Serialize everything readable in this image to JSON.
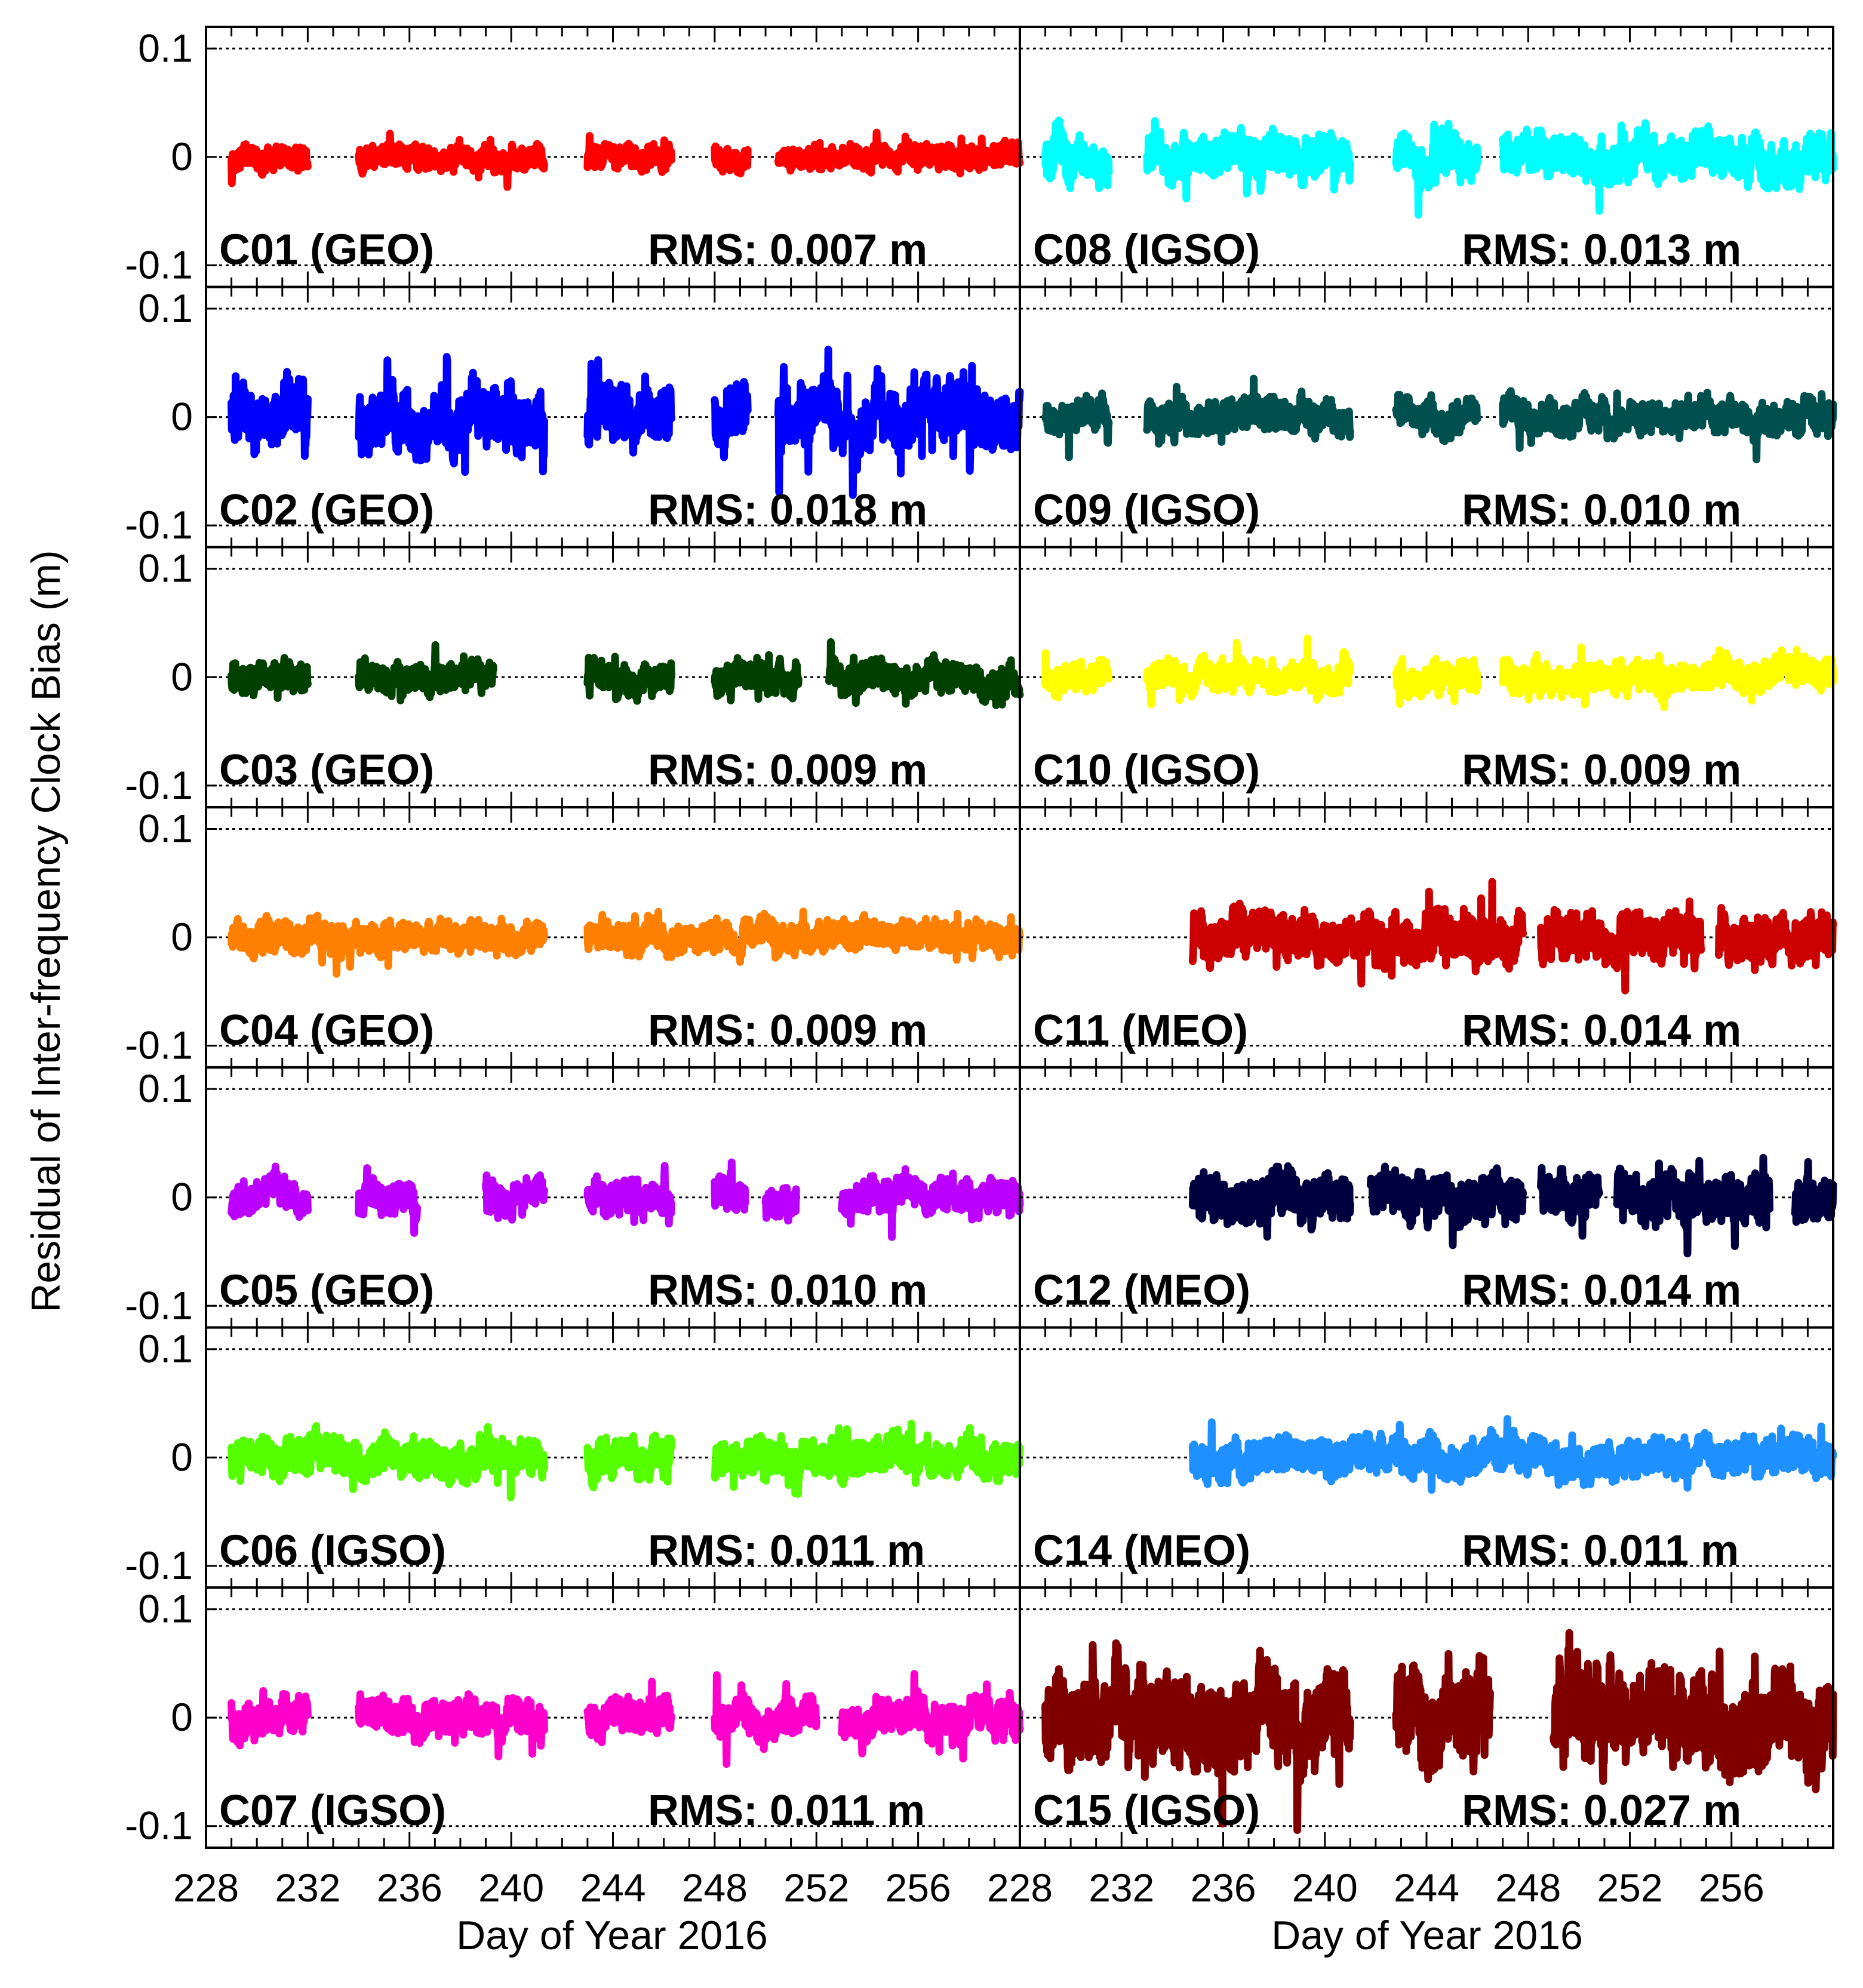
{
  "chart_data": {
    "type": "line",
    "ylabel": "Residual of Inter-frequency Clock Bias (m)",
    "xlabel_left": "Day of Year 2016",
    "xlabel_right": "Day of Year 2016",
    "xlim": [
      228,
      260
    ],
    "ylim": [
      -0.12,
      0.12
    ],
    "xticks": [
      228,
      232,
      236,
      240,
      244,
      248,
      252,
      256
    ],
    "xtick_labels_left": [
      "228",
      "232",
      "236",
      "240",
      "244",
      "248",
      "252",
      "256"
    ],
    "xtick_labels_right": [
      "228",
      "232",
      "236",
      "240",
      "244",
      "248",
      "252",
      "256"
    ],
    "yticks": [
      0.1,
      0,
      -0.1
    ],
    "ytick_labels": [
      "0.1",
      "0",
      "-0.1"
    ],
    "grid": "dotted horizontal lines at 0.1, 0 and -0.1",
    "panels": [
      {
        "name": "C01 (GEO)",
        "rms": "RMS: 0.007 m",
        "color": "#ff0000",
        "amp": 0.007,
        "segments": [
          [
            229,
            232
          ],
          [
            234,
            241.3
          ],
          [
            243,
            246.3
          ],
          [
            248,
            249.3
          ],
          [
            250.5,
            260
          ]
        ]
      },
      {
        "name": "C08 (IGSO)",
        "rms": "RMS: 0.013 m",
        "color": "#00ffff",
        "amp": 0.013,
        "segments": [
          [
            229,
            231.5
          ],
          [
            233,
            241
          ],
          [
            242.8,
            246
          ],
          [
            247,
            260
          ]
        ]
      },
      {
        "name": "C02 (GEO)",
        "rms": "RMS: 0.018 m",
        "color": "#0000ff",
        "amp": 0.018,
        "segments": [
          [
            229,
            232
          ],
          [
            234,
            241.3
          ],
          [
            243,
            246.3
          ],
          [
            248,
            249.3
          ],
          [
            250.5,
            260
          ]
        ]
      },
      {
        "name": "C09 (IGSO)",
        "rms": "RMS: 0.010 m",
        "color": "#005050",
        "amp": 0.01,
        "segments": [
          [
            229,
            231.5
          ],
          [
            233,
            241
          ],
          [
            242.8,
            246
          ],
          [
            247,
            260
          ]
        ]
      },
      {
        "name": "C03 (GEO)",
        "rms": "RMS: 0.009 m",
        "color": "#004000",
        "amp": 0.009,
        "segments": [
          [
            229,
            232
          ],
          [
            234,
            239.3
          ],
          [
            243,
            246.3
          ],
          [
            248,
            251.3
          ],
          [
            252.5,
            260
          ]
        ]
      },
      {
        "name": "C10 (IGSO)",
        "rms": "RMS: 0.009 m",
        "color": "#ffff00",
        "amp": 0.009,
        "segments": [
          [
            229,
            231.5
          ],
          [
            233,
            241
          ],
          [
            242.8,
            246
          ],
          [
            247,
            260
          ]
        ]
      },
      {
        "name": "C04 (GEO)",
        "rms": "RMS: 0.009 m",
        "color": "#ff8000",
        "amp": 0.009,
        "segments": [
          [
            229,
            241.3
          ],
          [
            243,
            260
          ]
        ]
      },
      {
        "name": "C11 (MEO)",
        "rms": "RMS: 0.014 m",
        "color": "#cc0000",
        "amp": 0.014,
        "segments": [
          [
            234.8,
            247.8
          ],
          [
            248.5,
            254.8
          ],
          [
            255.5,
            260
          ]
        ]
      },
      {
        "name": "C05 (GEO)",
        "rms": "RMS: 0.010 m",
        "color": "#bb00ff",
        "amp": 0.01,
        "segments": [
          [
            229,
            232
          ],
          [
            234,
            236.3
          ],
          [
            239,
            241.3
          ],
          [
            243,
            246.3
          ],
          [
            248,
            249.2
          ],
          [
            250,
            251.2
          ],
          [
            253,
            260
          ]
        ]
      },
      {
        "name": "C12 (MEO)",
        "rms": "RMS: 0.014 m",
        "color": "#000040",
        "amp": 0.014,
        "segments": [
          [
            234.8,
            241
          ],
          [
            241.8,
            247.8
          ],
          [
            248.5,
            250.8
          ],
          [
            251.5,
            257.5
          ],
          [
            258.5,
            260
          ]
        ]
      },
      {
        "name": "C06 (IGSO)",
        "rms": "RMS: 0.011 m",
        "color": "#55ff00",
        "amp": 0.011,
        "segments": [
          [
            229,
            241.3
          ],
          [
            243,
            246.3
          ],
          [
            248,
            260
          ]
        ]
      },
      {
        "name": "C14 (MEO)",
        "rms": "RMS: 0.011 m",
        "color": "#1e90ff",
        "amp": 0.011,
        "segments": [
          [
            234.8,
            260
          ]
        ]
      },
      {
        "name": "C07 (IGSO)",
        "rms": "RMS: 0.011 m",
        "color": "#ff00cc",
        "amp": 0.011,
        "segments": [
          [
            229,
            232
          ],
          [
            234,
            241.3
          ],
          [
            243,
            246.3
          ],
          [
            248,
            252
          ],
          [
            253,
            260
          ]
        ]
      },
      {
        "name": "C15 (IGSO)",
        "rms": "RMS: 0.027 m",
        "color": "#800000",
        "amp": 0.027,
        "segments": [
          [
            229,
            241
          ],
          [
            242.8,
            246.5
          ],
          [
            249,
            260
          ]
        ]
      }
    ]
  }
}
